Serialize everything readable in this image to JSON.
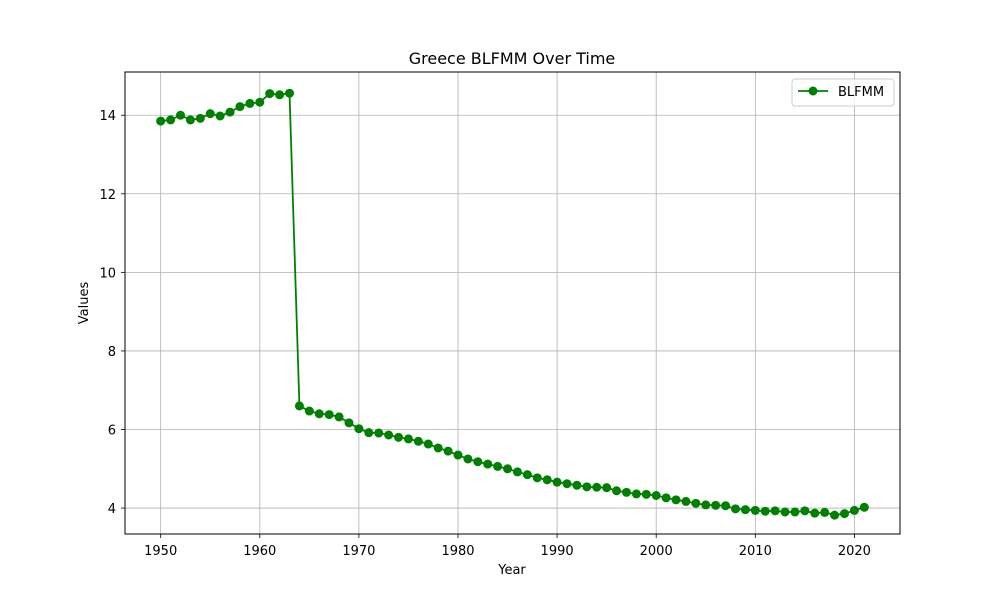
{
  "chart_data": {
    "type": "line",
    "title": "Greece BLFMM Over Time",
    "xlabel": "Year",
    "ylabel": "Values",
    "xlim": [
      1946.4,
      2024.6
    ],
    "ylim": [
      3.34,
      15.1
    ],
    "xticks": [
      1950,
      1960,
      1970,
      1980,
      1990,
      2000,
      2010,
      2020
    ],
    "yticks": [
      4,
      6,
      8,
      10,
      12,
      14
    ],
    "grid": true,
    "legend_position": "top-right",
    "series": [
      {
        "name": "BLFMM",
        "color": "#008000",
        "marker": "circle",
        "x": [
          1950,
          1951,
          1952,
          1953,
          1954,
          1955,
          1956,
          1957,
          1958,
          1959,
          1960,
          1961,
          1962,
          1963,
          1964,
          1965,
          1966,
          1967,
          1968,
          1969,
          1970,
          1971,
          1972,
          1973,
          1974,
          1975,
          1976,
          1977,
          1978,
          1979,
          1980,
          1981,
          1982,
          1983,
          1984,
          1985,
          1986,
          1987,
          1988,
          1989,
          1990,
          1991,
          1992,
          1993,
          1994,
          1995,
          1996,
          1997,
          1998,
          1999,
          2000,
          2001,
          2002,
          2003,
          2004,
          2005,
          2006,
          2007,
          2008,
          2009,
          2010,
          2011,
          2012,
          2013,
          2014,
          2015,
          2016,
          2017,
          2018,
          2019,
          2020,
          2021
        ],
        "values": [
          13.85,
          13.88,
          14.0,
          13.88,
          13.92,
          14.04,
          13.98,
          14.08,
          14.22,
          14.3,
          14.33,
          14.55,
          14.52,
          14.56,
          6.6,
          6.47,
          6.4,
          6.38,
          6.32,
          6.17,
          6.02,
          5.92,
          5.91,
          5.86,
          5.8,
          5.76,
          5.7,
          5.63,
          5.53,
          5.45,
          5.35,
          5.25,
          5.18,
          5.12,
          5.06,
          5.0,
          4.92,
          4.85,
          4.77,
          4.72,
          4.66,
          4.62,
          4.58,
          4.54,
          4.53,
          4.52,
          4.44,
          4.4,
          4.36,
          4.35,
          4.32,
          4.26,
          4.21,
          4.17,
          4.12,
          4.08,
          4.07,
          4.06,
          3.98,
          3.96,
          3.94,
          3.92,
          3.93,
          3.9,
          3.9,
          3.93,
          3.87,
          3.89,
          3.82,
          3.86,
          3.94,
          4.02
        ]
      }
    ]
  }
}
